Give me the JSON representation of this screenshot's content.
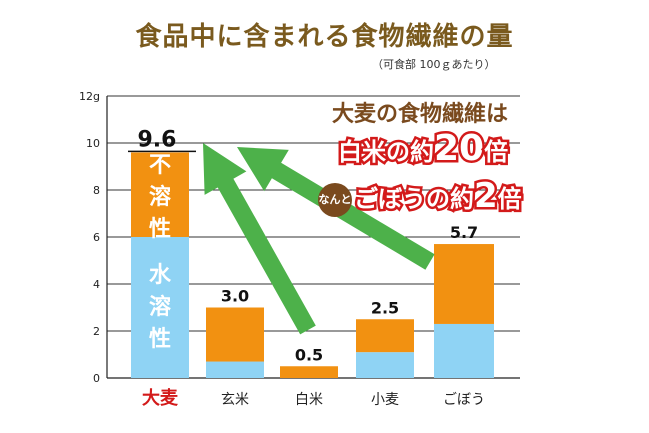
{
  "title": "食品中に含まれる食物繊維の量",
  "subtitle": "（可食部 100ｇあたり）",
  "callout": {
    "line1": "大麦の食物繊維は",
    "line2_pre": "白米の約",
    "line2_num": "20",
    "line2_post": "倍",
    "badge": "なんと",
    "line3_pre": "ごぼうの約",
    "line3_num": "2",
    "line3_post": "倍"
  },
  "colors": {
    "insoluble": "#f29111",
    "soluble": "#8fd3f4",
    "arrow": "#4db14a",
    "highlight": "#d31a1a",
    "grid": "#333333"
  },
  "chart_data": {
    "type": "bar",
    "stacked": true,
    "categories": [
      "大麦",
      "玄米",
      "白米",
      "小麦",
      "ごぼう"
    ],
    "highlight_category": "大麦",
    "series": [
      {
        "name": "水溶性",
        "values": [
          6.0,
          0.7,
          0.0,
          1.1,
          2.3
        ]
      },
      {
        "name": "不溶性",
        "values": [
          3.6,
          2.3,
          0.5,
          1.4,
          3.4
        ]
      }
    ],
    "totals": [
      "9.6",
      "3.0",
      "0.5",
      "2.5",
      "5.7"
    ],
    "bar_labels": {
      "insoluble": "不溶性",
      "soluble": "水溶性"
    },
    "y_ticks": [
      "0",
      "2",
      "4",
      "6",
      "8",
      "10",
      "12g"
    ],
    "ylim": [
      0,
      12
    ],
    "grid": true
  }
}
